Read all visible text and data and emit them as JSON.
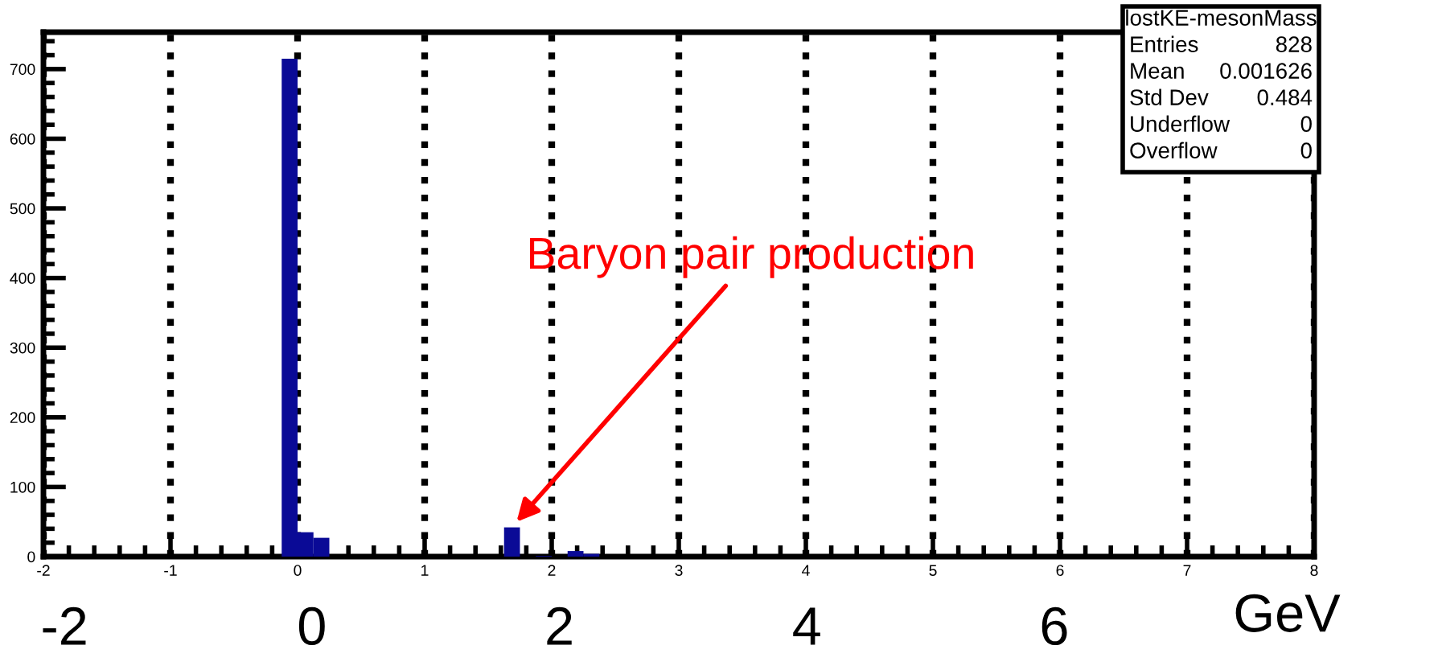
{
  "chart_data": {
    "type": "histogram",
    "color": "#0a0a96",
    "bins": [
      -0.125,
      0,
      0.125,
      0.25,
      0.375,
      0.5,
      0.625,
      0.75,
      0.875,
      1,
      1.125,
      1.25,
      1.375,
      1.5,
      1.625,
      1.75,
      1.875,
      2,
      2.125,
      2.25,
      2.375
    ],
    "values": [
      715,
      35,
      27,
      0,
      0,
      0,
      0,
      0,
      0,
      0,
      0,
      0,
      0,
      0,
      42,
      0,
      1,
      0,
      8,
      4
    ],
    "xlim": [
      -2,
      8
    ],
    "xticks": [
      -2,
      -1,
      0,
      1,
      2,
      3,
      4,
      5,
      6,
      7,
      8
    ],
    "ylim": [
      0,
      753
    ],
    "yticks": [
      0,
      100,
      200,
      300,
      400,
      500,
      600,
      700
    ],
    "x2lim": [
      -2.17,
      8.1
    ],
    "x2ticks": [
      -2,
      0,
      2,
      4,
      6
    ],
    "x2label": "GeV",
    "grid": "x",
    "line_style": "dotted",
    "annotations": [
      {
        "text": "Baryon pair production",
        "x": 1.7,
        "y": 45
      },
      "lostKE-mesonMass",
      "Entries",
      "828",
      "Mean",
      "0.001626",
      "Std Dev",
      "0.484",
      "Underflow",
      "0",
      "Overflow",
      "0"
    ]
  }
}
